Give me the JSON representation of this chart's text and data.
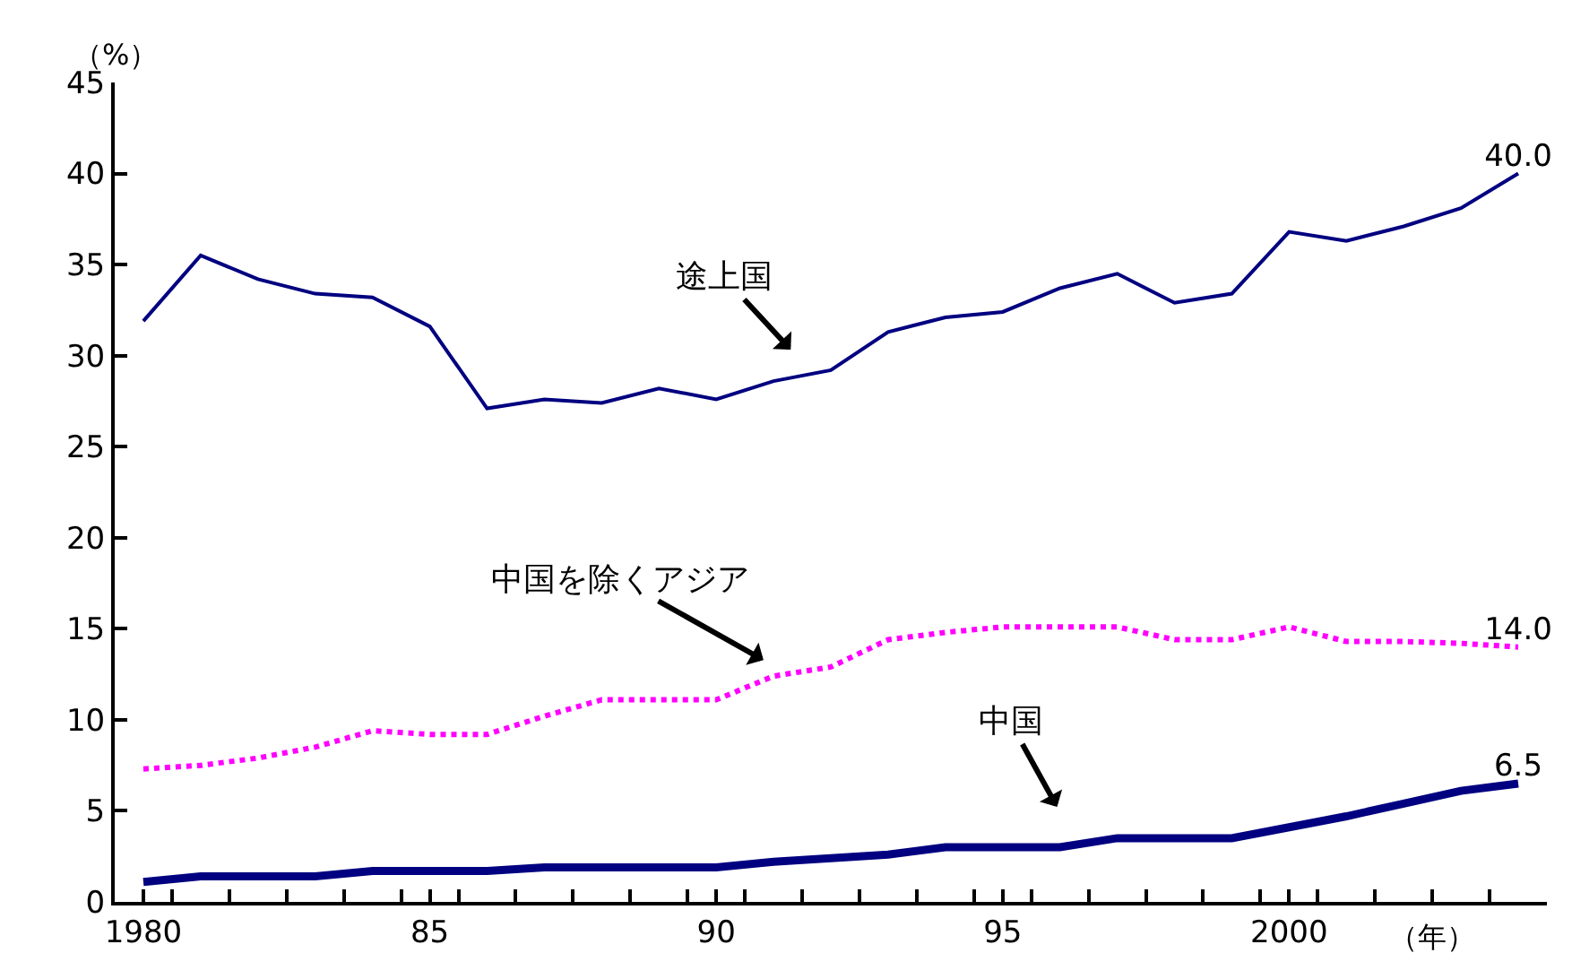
{
  "chart_data": {
    "type": "line",
    "ylabel": "（%）",
    "xlabel": "（年）",
    "x": [
      1980,
      1981,
      1982,
      1983,
      1984,
      1985,
      1986,
      1987,
      1988,
      1989,
      1990,
      1991,
      1992,
      1993,
      1994,
      1995,
      1996,
      1997,
      1998,
      1999,
      2000,
      2001,
      2002,
      2003,
      2004
    ],
    "series": [
      {
        "color": "#000080",
        "line_style": "solid",
        "values": [
          31.9,
          35.5,
          34.2,
          33.4,
          33.2,
          31.6,
          27.1,
          27.6,
          27.4,
          28.2,
          27.6,
          28.6,
          29.2,
          31.3,
          32.1,
          32.4,
          33.7,
          34.5,
          32.9,
          33.4,
          36.8,
          36.3,
          37.1,
          38.1,
          40.0
        ],
        "value_labels": [
          null,
          null,
          null,
          null,
          null,
          null,
          null,
          null,
          null,
          null,
          null,
          null,
          null,
          null,
          null,
          null,
          null,
          null,
          null,
          null,
          null,
          null,
          null,
          null,
          "40.0"
        ]
      },
      {
        "color": "#ff00ff",
        "line_style": "dotted",
        "values": [
          7.3,
          7.5,
          7.9,
          8.5,
          9.4,
          9.2,
          9.2,
          10.2,
          11.1,
          11.1,
          11.1,
          12.4,
          12.9,
          14.4,
          14.8,
          15.1,
          15.1,
          15.1,
          14.4,
          14.4,
          15.1,
          14.3,
          14.3,
          14.2,
          14.0
        ],
        "value_labels": [
          null,
          null,
          null,
          null,
          null,
          null,
          null,
          null,
          null,
          null,
          null,
          null,
          null,
          null,
          null,
          null,
          null,
          null,
          null,
          null,
          null,
          null,
          null,
          null,
          "14.0"
        ]
      },
      {
        "color": "#000080",
        "line_style": "solid",
        "values": [
          1.1,
          1.4,
          1.4,
          1.4,
          1.7,
          1.7,
          1.7,
          1.9,
          1.9,
          1.9,
          1.9,
          2.2,
          2.4,
          2.6,
          3.0,
          3.0,
          3.0,
          3.5,
          3.5,
          3.5,
          4.1,
          4.7,
          5.4,
          6.1,
          6.5
        ],
        "value_labels": [
          null,
          null,
          null,
          null,
          null,
          null,
          null,
          null,
          null,
          null,
          null,
          null,
          null,
          null,
          null,
          null,
          null,
          null,
          null,
          null,
          null,
          null,
          null,
          null,
          "6.5"
        ]
      }
    ],
    "annotations": [
      "途上国",
      "中国を除くアジア",
      "中国"
    ],
    "xlim": [
      1979.5,
      2004.5
    ],
    "xticks": [
      {
        "value": 1980,
        "label": "1980"
      },
      {
        "value": 1985,
        "label": "85"
      },
      {
        "value": 1990,
        "label": "90"
      },
      {
        "value": 1995,
        "label": "95"
      },
      {
        "value": 2000,
        "label": "2000"
      },
      {
        "value": 1980.5,
        "label": null
      },
      {
        "value": 1981.5,
        "label": null
      },
      {
        "value": 1982.5,
        "label": null
      },
      {
        "value": 1983.5,
        "label": null
      },
      {
        "value": 1984.5,
        "label": null
      },
      {
        "value": 1985.5,
        "label": null
      },
      {
        "value": 1986.5,
        "label": null
      },
      {
        "value": 1987.5,
        "label": null
      },
      {
        "value": 1988.5,
        "label": null
      },
      {
        "value": 1989.5,
        "label": null
      },
      {
        "value": 1990.5,
        "label": null
      },
      {
        "value": 1991.5,
        "label": null
      },
      {
        "value": 1992.5,
        "label": null
      },
      {
        "value": 1993.5,
        "label": null
      },
      {
        "value": 1994.5,
        "label": null
      },
      {
        "value": 1995.5,
        "label": null
      },
      {
        "value": 1996.5,
        "label": null
      },
      {
        "value": 1997.5,
        "label": null
      },
      {
        "value": 1998.5,
        "label": null
      },
      {
        "value": 1999.5,
        "label": null
      },
      {
        "value": 2000.5,
        "label": null
      },
      {
        "value": 2001.5,
        "label": null
      },
      {
        "value": 2002.5,
        "label": null
      },
      {
        "value": 2003.5,
        "label": null
      }
    ],
    "ylim": [
      0,
      45
    ],
    "yticks": [
      0,
      5,
      10,
      15,
      20,
      25,
      30,
      35,
      40,
      45
    ],
    "legend": false,
    "marker": "none"
  }
}
